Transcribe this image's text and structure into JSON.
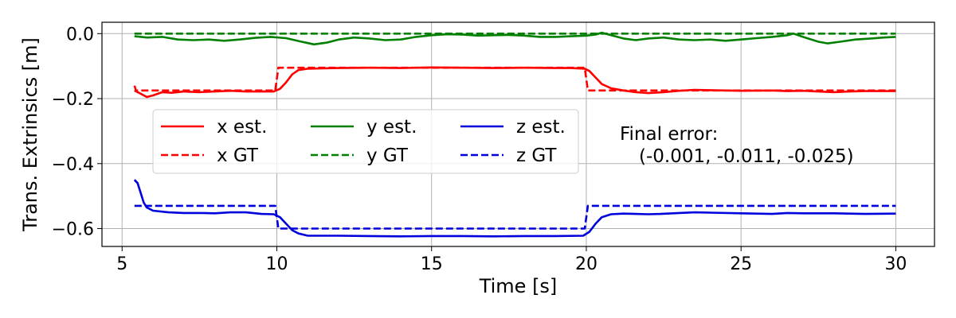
{
  "chart_data": {
    "type": "line",
    "title": "",
    "xlabel": "Time [s]",
    "ylabel": "Trans. Extrinsics [m]",
    "xlim": [
      4.35,
      31.25
    ],
    "ylim": [
      -0.655,
      0.035
    ],
    "xticks": [
      5,
      10,
      15,
      20,
      25,
      30
    ],
    "xtick_labels": [
      "5",
      "10",
      "15",
      "20",
      "25",
      "30"
    ],
    "yticks": [
      0.0,
      -0.2,
      -0.4,
      -0.6
    ],
    "ytick_labels": [
      "0.0",
      "−0.2",
      "−0.4",
      "−0.6"
    ],
    "grid": true,
    "legend_position": "center-left",
    "annotation_lines": [
      "Final error:",
      "(-0.001, -0.011, -0.025)"
    ],
    "series": [
      {
        "name": "x est.",
        "color": "#ff0000",
        "style": "solid",
        "points": [
          [
            5.4,
            -0.175
          ],
          [
            5.6,
            -0.185
          ],
          [
            5.8,
            -0.195
          ],
          [
            6.0,
            -0.19
          ],
          [
            6.3,
            -0.18
          ],
          [
            6.6,
            -0.182
          ],
          [
            7.0,
            -0.178
          ],
          [
            7.5,
            -0.18
          ],
          [
            8.0,
            -0.178
          ],
          [
            8.5,
            -0.176
          ],
          [
            9.0,
            -0.178
          ],
          [
            9.5,
            -0.178
          ],
          [
            9.9,
            -0.178
          ],
          [
            10.1,
            -0.17
          ],
          [
            10.3,
            -0.15
          ],
          [
            10.5,
            -0.125
          ],
          [
            10.7,
            -0.112
          ],
          [
            11.0,
            -0.108
          ],
          [
            11.5,
            -0.107
          ],
          [
            12.0,
            -0.106
          ],
          [
            13.0,
            -0.105
          ],
          [
            14.0,
            -0.106
          ],
          [
            15.0,
            -0.104
          ],
          [
            16.0,
            -0.105
          ],
          [
            17.0,
            -0.106
          ],
          [
            18.0,
            -0.105
          ],
          [
            19.0,
            -0.106
          ],
          [
            19.5,
            -0.106
          ],
          [
            19.95,
            -0.108
          ],
          [
            20.1,
            -0.115
          ],
          [
            20.3,
            -0.135
          ],
          [
            20.5,
            -0.155
          ],
          [
            20.8,
            -0.168
          ],
          [
            21.2,
            -0.175
          ],
          [
            21.6,
            -0.18
          ],
          [
            22.0,
            -0.183
          ],
          [
            22.5,
            -0.18
          ],
          [
            23.0,
            -0.176
          ],
          [
            23.5,
            -0.173
          ],
          [
            24.0,
            -0.174
          ],
          [
            25.0,
            -0.176
          ],
          [
            26.0,
            -0.175
          ],
          [
            26.5,
            -0.177
          ],
          [
            27.0,
            -0.176
          ],
          [
            28.0,
            -0.18
          ],
          [
            28.5,
            -0.178
          ],
          [
            29.0,
            -0.177
          ],
          [
            30.0,
            -0.177
          ]
        ]
      },
      {
        "name": "x GT",
        "color": "#ff0000",
        "style": "dashed",
        "points": [
          [
            5.4,
            -0.16
          ],
          [
            5.45,
            -0.175
          ],
          [
            9.95,
            -0.175
          ],
          [
            10.05,
            -0.105
          ],
          [
            19.95,
            -0.105
          ],
          [
            20.05,
            -0.175
          ],
          [
            30.0,
            -0.175
          ]
        ]
      },
      {
        "name": "y est.",
        "color": "#008000",
        "style": "solid",
        "points": [
          [
            5.4,
            -0.008
          ],
          [
            5.8,
            -0.012
          ],
          [
            6.3,
            -0.01
          ],
          [
            6.8,
            -0.018
          ],
          [
            7.3,
            -0.02
          ],
          [
            7.8,
            -0.018
          ],
          [
            8.3,
            -0.022
          ],
          [
            8.8,
            -0.018
          ],
          [
            9.3,
            -0.013
          ],
          [
            9.8,
            -0.01
          ],
          [
            10.3,
            -0.014
          ],
          [
            10.8,
            -0.025
          ],
          [
            11.2,
            -0.033
          ],
          [
            11.6,
            -0.028
          ],
          [
            12.0,
            -0.018
          ],
          [
            12.5,
            -0.012
          ],
          [
            13.0,
            -0.015
          ],
          [
            13.5,
            -0.02
          ],
          [
            14.0,
            -0.018
          ],
          [
            14.5,
            -0.01
          ],
          [
            15.0,
            -0.005
          ],
          [
            15.5,
            -0.002
          ],
          [
            16.0,
            -0.003
          ],
          [
            16.5,
            -0.006
          ],
          [
            17.0,
            -0.005
          ],
          [
            17.5,
            -0.004
          ],
          [
            18.0,
            -0.006
          ],
          [
            18.5,
            -0.01
          ],
          [
            19.0,
            -0.01
          ],
          [
            19.5,
            -0.008
          ],
          [
            20.0,
            -0.006
          ],
          [
            20.3,
            -0.003
          ],
          [
            20.5,
            0.003
          ],
          [
            20.8,
            -0.005
          ],
          [
            21.2,
            -0.015
          ],
          [
            21.6,
            -0.02
          ],
          [
            22.0,
            -0.015
          ],
          [
            22.5,
            -0.012
          ],
          [
            23.0,
            -0.018
          ],
          [
            23.5,
            -0.02
          ],
          [
            24.0,
            -0.018
          ],
          [
            24.5,
            -0.022
          ],
          [
            25.0,
            -0.018
          ],
          [
            25.5,
            -0.014
          ],
          [
            26.0,
            -0.01
          ],
          [
            26.5,
            -0.005
          ],
          [
            26.7,
            0.0
          ],
          [
            27.0,
            -0.01
          ],
          [
            27.5,
            -0.025
          ],
          [
            27.8,
            -0.03
          ],
          [
            28.2,
            -0.025
          ],
          [
            28.7,
            -0.018
          ],
          [
            29.2,
            -0.015
          ],
          [
            29.6,
            -0.012
          ],
          [
            30.0,
            -0.01
          ]
        ]
      },
      {
        "name": "y GT",
        "color": "#008000",
        "style": "dashed",
        "points": [
          [
            5.4,
            0.0
          ],
          [
            30.0,
            0.0
          ]
        ]
      },
      {
        "name": "z est.",
        "color": "#0000dd",
        "style": "solid",
        "points": [
          [
            5.4,
            -0.45
          ],
          [
            5.5,
            -0.46
          ],
          [
            5.6,
            -0.49
          ],
          [
            5.7,
            -0.52
          ],
          [
            5.8,
            -0.535
          ],
          [
            6.0,
            -0.545
          ],
          [
            6.5,
            -0.55
          ],
          [
            7.0,
            -0.552
          ],
          [
            7.5,
            -0.552
          ],
          [
            8.0,
            -0.553
          ],
          [
            8.5,
            -0.55
          ],
          [
            9.0,
            -0.55
          ],
          [
            9.5,
            -0.555
          ],
          [
            9.9,
            -0.556
          ],
          [
            10.1,
            -0.565
          ],
          [
            10.3,
            -0.585
          ],
          [
            10.5,
            -0.605
          ],
          [
            10.7,
            -0.615
          ],
          [
            11.0,
            -0.622
          ],
          [
            11.5,
            -0.622
          ],
          [
            12.0,
            -0.622
          ],
          [
            13.0,
            -0.623
          ],
          [
            14.0,
            -0.624
          ],
          [
            15.0,
            -0.623
          ],
          [
            16.0,
            -0.623
          ],
          [
            17.0,
            -0.624
          ],
          [
            18.0,
            -0.623
          ],
          [
            19.0,
            -0.623
          ],
          [
            19.9,
            -0.622
          ],
          [
            20.1,
            -0.61
          ],
          [
            20.3,
            -0.585
          ],
          [
            20.5,
            -0.565
          ],
          [
            20.8,
            -0.556
          ],
          [
            21.2,
            -0.554
          ],
          [
            21.6,
            -0.555
          ],
          [
            22.0,
            -0.556
          ],
          [
            22.4,
            -0.555
          ],
          [
            23.0,
            -0.552
          ],
          [
            23.5,
            -0.55
          ],
          [
            24.0,
            -0.551
          ],
          [
            25.0,
            -0.553
          ],
          [
            26.0,
            -0.555
          ],
          [
            26.5,
            -0.552
          ],
          [
            27.0,
            -0.553
          ],
          [
            28.0,
            -0.553
          ],
          [
            29.0,
            -0.555
          ],
          [
            30.0,
            -0.554
          ]
        ]
      },
      {
        "name": "z GT",
        "color": "#0000dd",
        "style": "dashed",
        "points": [
          [
            5.4,
            -0.53
          ],
          [
            9.95,
            -0.53
          ],
          [
            10.05,
            -0.6
          ],
          [
            19.95,
            -0.6
          ],
          [
            20.05,
            -0.53
          ],
          [
            30.0,
            -0.53
          ]
        ]
      }
    ]
  }
}
